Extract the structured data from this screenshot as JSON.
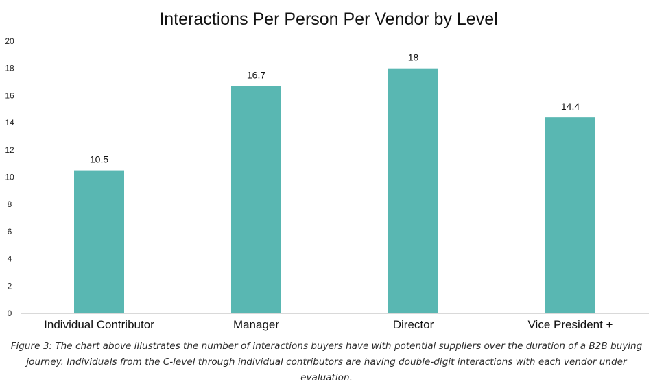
{
  "chart_data": {
    "type": "bar",
    "title": "Interactions Per Person Per Vendor by Level",
    "categories": [
      "Individual Contributor",
      "Manager",
      "Director",
      "Vice President +"
    ],
    "values": [
      10.5,
      16.7,
      18,
      14.4
    ],
    "data_labels": [
      "10.5",
      "16.7",
      "18",
      "14.4"
    ],
    "xlabel": "",
    "ylabel": "",
    "ylim": [
      0,
      20
    ],
    "yticks": [
      0,
      2,
      4,
      6,
      8,
      10,
      12,
      14,
      16,
      18,
      20
    ],
    "grid": false,
    "legend": "none",
    "bar_color": "#59B7B2"
  },
  "caption": "Figure 3: The chart above illustrates the number of interactions buyers have with potential suppliers over the duration of a B2B buying journey. Individuals from the C-level through individual contributors are having double-digit interactions with each vendor under evaluation."
}
